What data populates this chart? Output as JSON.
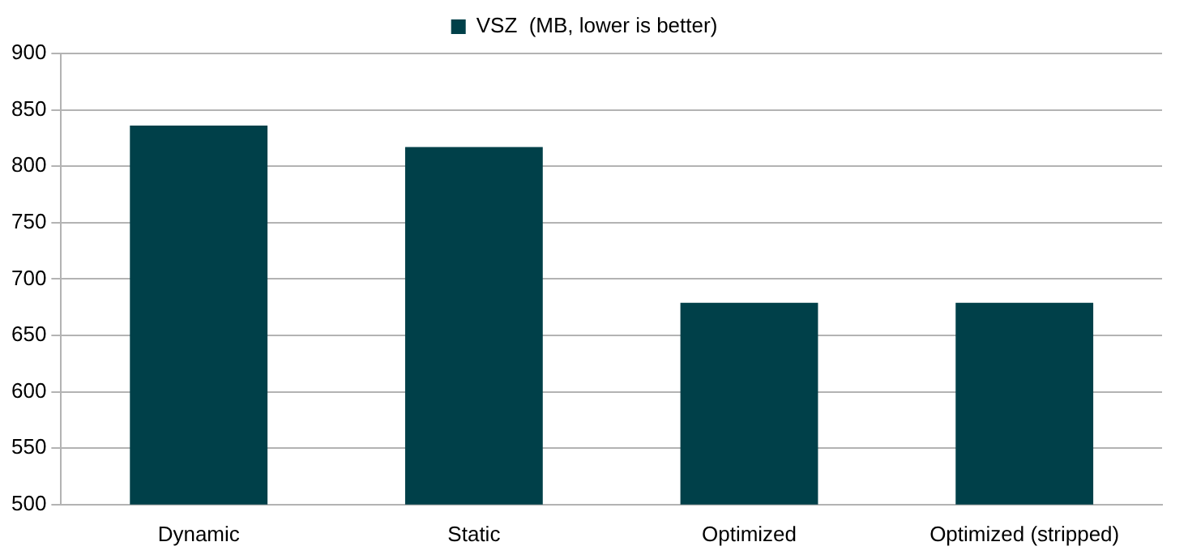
{
  "chart_data": {
    "type": "bar",
    "categories": [
      "Dynamic",
      "Static",
      "Optimized",
      "Optimized (stripped)"
    ],
    "series": [
      {
        "name": "VSZ  (MB, lower is better)",
        "color": "#004049",
        "values": [
          836,
          817,
          679,
          679
        ]
      }
    ],
    "ylim": [
      500,
      900
    ],
    "yticks": [
      500,
      550,
      600,
      650,
      700,
      750,
      800,
      850,
      900
    ],
    "grid": "y",
    "legend": "top"
  }
}
